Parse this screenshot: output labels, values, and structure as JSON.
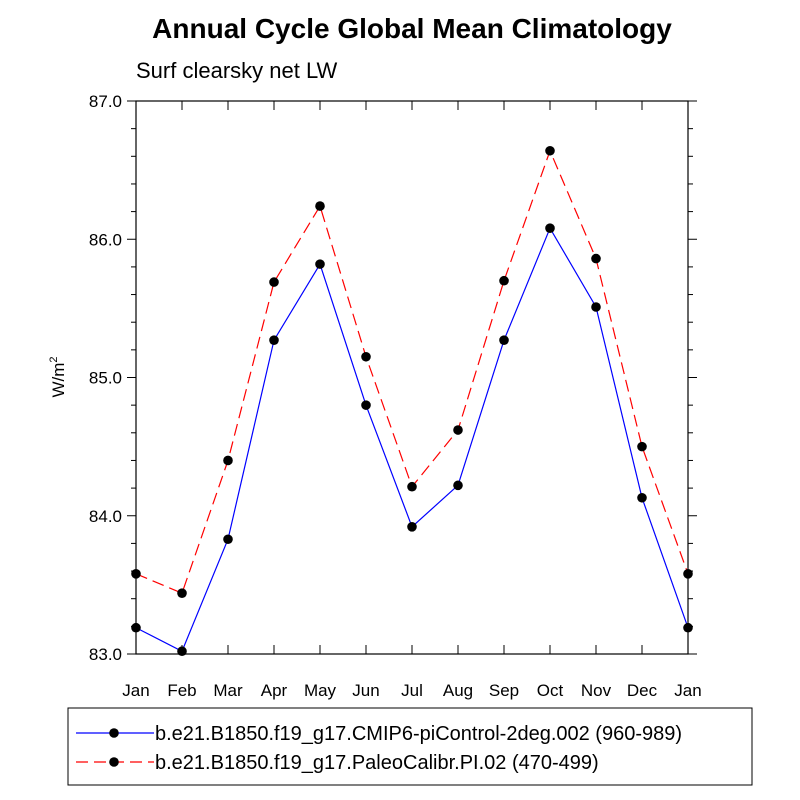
{
  "chart_data": {
    "type": "line",
    "title": "Annual Cycle Global Mean Climatology",
    "subtitle": "Surf clearsky net LW",
    "ylabel_base": "W/m",
    "ylabel_sup": "2",
    "xlabel": "",
    "categories": [
      "Jan",
      "Feb",
      "Mar",
      "Apr",
      "May",
      "Jun",
      "Jul",
      "Aug",
      "Sep",
      "Oct",
      "Nov",
      "Dec",
      "Jan"
    ],
    "ylim": [
      83.0,
      87.0
    ],
    "yticks": [
      83.0,
      84.0,
      85.0,
      86.0,
      87.0
    ],
    "ytick_labels": [
      "83.0",
      "84.0",
      "85.0",
      "86.0",
      "87.0"
    ],
    "legend_position": "bottom",
    "series": [
      {
        "name": "b.e21.B1850.f19_g17.CMIP6-piControl-2deg.002 (960-989)",
        "color": "#0000ff",
        "dash": "solid",
        "marker": "filled-circle",
        "values": [
          83.19,
          83.02,
          83.83,
          85.27,
          85.82,
          84.8,
          83.92,
          84.22,
          85.27,
          86.08,
          85.51,
          84.13,
          83.19
        ]
      },
      {
        "name": "b.e21.B1850.f19_g17.PaleoCalibr.PI.02 (470-499)",
        "color": "#ff0000",
        "dash": "dashed",
        "marker": "filled-circle",
        "values": [
          83.58,
          83.44,
          84.4,
          85.69,
          86.24,
          85.15,
          84.21,
          84.62,
          85.7,
          86.64,
          85.86,
          84.5,
          83.58
        ]
      }
    ]
  }
}
